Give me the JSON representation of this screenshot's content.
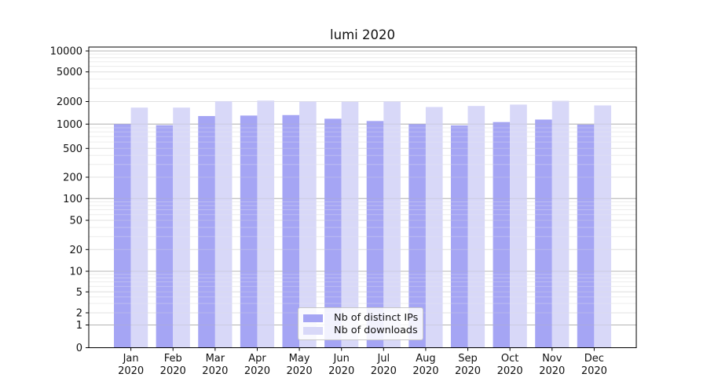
{
  "title": "lumi 2020",
  "chart_data": {
    "type": "bar",
    "title": "lumi 2020",
    "x_tick_months": [
      "Jan",
      "Feb",
      "Mar",
      "Apr",
      "May",
      "Jun",
      "Jul",
      "Aug",
      "Sep",
      "Oct",
      "Nov",
      "Dec"
    ],
    "x_tick_year": "2020",
    "y_ticks": [
      0,
      1,
      2,
      5,
      10,
      20,
      50,
      100,
      200,
      500,
      1000,
      2000,
      5000,
      10000
    ],
    "y_scale": "symlog",
    "ylim": [
      0,
      13000
    ],
    "grid": true,
    "legend_position": "lower center",
    "series": [
      {
        "name": "Nb of distinct IPs",
        "color": "#a5a5f4",
        "values": [
          1000,
          970,
          1280,
          1300,
          1320,
          1180,
          1100,
          1000,
          965,
          1065,
          1150,
          985
        ]
      },
      {
        "name": "Nb of downloads",
        "color": "#d8d8f8",
        "values": [
          1660,
          1660,
          2025,
          2060,
          2010,
          1995,
          2010,
          1690,
          1745,
          1820,
          2045,
          1775
        ]
      }
    ]
  }
}
